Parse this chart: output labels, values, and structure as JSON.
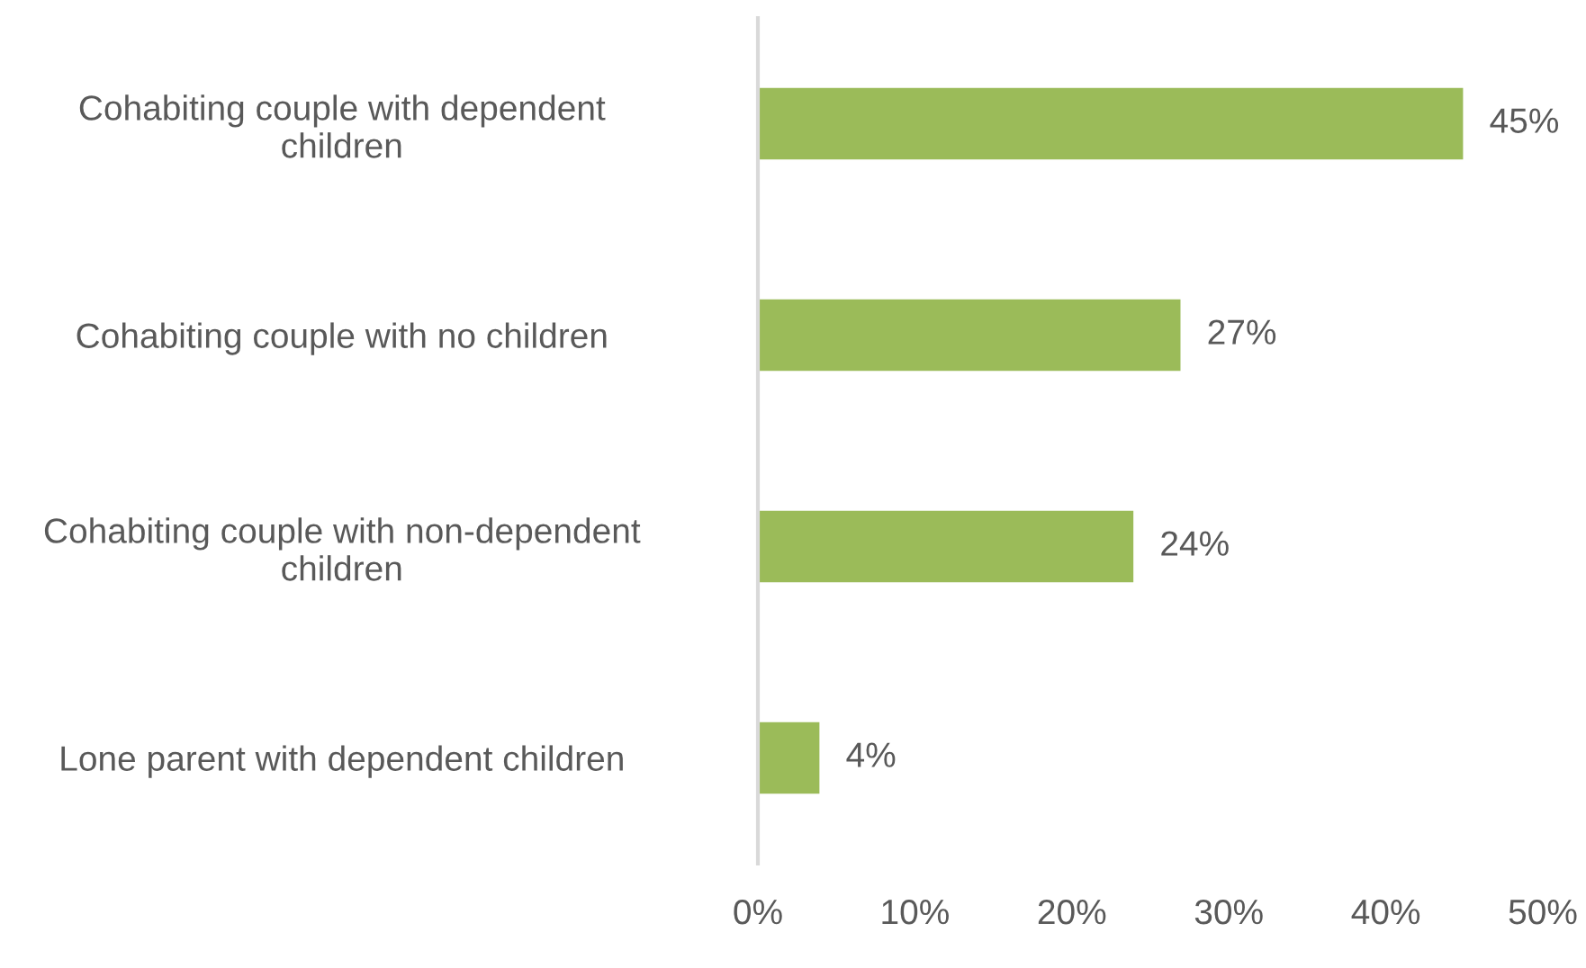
{
  "chart_data": {
    "type": "bar",
    "orientation": "horizontal",
    "categories": [
      "Cohabiting couple with dependent\nchildren",
      "Cohabiting couple with no children",
      "Cohabiting couple with non-dependent\nchildren",
      "Lone parent with dependent children"
    ],
    "values": [
      45,
      27,
      24,
      4
    ],
    "color": "#9bbb59",
    "value_labels": [
      "45%",
      "27%",
      "24%",
      "4%"
    ],
    "xlim": [
      0,
      50
    ],
    "xticks": [
      {
        "value": 0,
        "label": "0%"
      },
      {
        "value": 10,
        "label": "10%"
      },
      {
        "value": 20,
        "label": "20%"
      },
      {
        "value": 30,
        "label": "30%"
      },
      {
        "value": 40,
        "label": "40%"
      },
      {
        "value": 50,
        "label": "50%"
      }
    ],
    "grid": false,
    "legend": false
  }
}
